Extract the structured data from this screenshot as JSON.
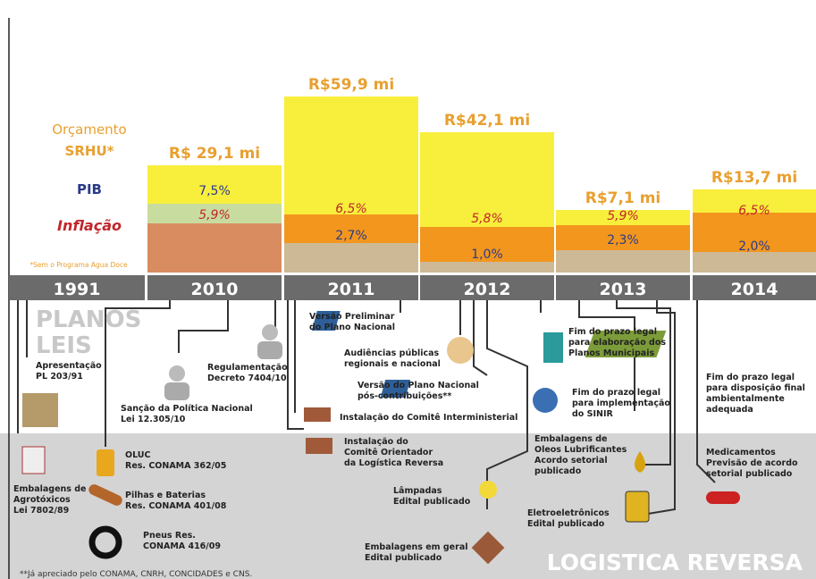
{
  "legend": {
    "budget": [
      "Orçamento",
      "SRHU*"
    ],
    "pib": "PIB",
    "inflation": "Inflação",
    "note": "*Sem o Programa Agua Doce"
  },
  "years": [
    "1991",
    "2010",
    "2011",
    "2012",
    "2013",
    "2014"
  ],
  "columns": [
    {
      "budget": "R$ 29,1 mi",
      "pib": "7,5%",
      "inflation": "5,9%"
    },
    {
      "budget": "R$59,9 mi",
      "pib": "2,7%",
      "inflation": "6,5%"
    },
    {
      "budget": "R$42,1 mi",
      "pib": "1,0%",
      "inflation": "5,8%"
    },
    {
      "budget": "R$7,1 mi",
      "pib": "2,3%",
      "inflation": "5,9%"
    },
    {
      "budget": "R$13,7 mi",
      "pib": "2,0%",
      "inflation": "6,5%"
    }
  ],
  "sections": {
    "plans": "PLANOS",
    "laws": "LEIS",
    "reverse": "LOGISTICA REVERSA"
  },
  "events": [
    {
      "lines": [
        "Apresentação",
        "PL 203/91"
      ]
    },
    {
      "lines": [
        "Embalagens de",
        "Agrotóxicos",
        "Lei 7802/89"
      ]
    },
    {
      "lines": [
        "Sanção da Política Nacional",
        "Lei 12.305/10"
      ]
    },
    {
      "lines": [
        "Regulamentação",
        "Decreto 7404/10"
      ]
    },
    {
      "lines": [
        "OLUC",
        "Res. CONAMA 362/05"
      ]
    },
    {
      "lines": [
        "Pilhas e Baterias",
        "Res. CONAMA 401/08"
      ]
    },
    {
      "lines": [
        "Pneus Res.",
        "CONAMA 416/09"
      ]
    },
    {
      "lines": [
        "Versão Preliminar",
        "do Plano Nacional"
      ]
    },
    {
      "lines": [
        "Audiências públicas",
        "regionais e nacional"
      ]
    },
    {
      "lines": [
        "Versão do Plano Nacional",
        "pós-contribuições**"
      ]
    },
    {
      "lines": [
        "Instalação do Comitê Interministerial"
      ]
    },
    {
      "lines": [
        "Instalação do",
        "Comitê Orientador",
        "da Logística Reversa"
      ]
    },
    {
      "lines": [
        "Lâmpadas",
        "Edital publicado"
      ]
    },
    {
      "lines": [
        "Embalagens em geral",
        "Edital publicado"
      ]
    },
    {
      "lines": [
        "Fim do prazo legal",
        "para elaboração dos",
        "Planos Municipais"
      ]
    },
    {
      "lines": [
        "Fim do prazo legal",
        "para implementação",
        "do SINIR"
      ]
    },
    {
      "lines": [
        "Embalagens de",
        "Oleos Lubrificantes",
        "Acordo setorial",
        "publicado"
      ]
    },
    {
      "lines": [
        "Eletroeletrônicos",
        "Edital publicado"
      ]
    },
    {
      "lines": [
        "Fim do prazo legal",
        "para disposição final",
        "ambientalmente",
        "adequada"
      ]
    },
    {
      "lines": [
        "Medicamentos",
        "Previsão de acordo",
        "setorial publicado"
      ]
    }
  ],
  "footnote": "**Já apreciado pelo CONAMA, CNRH, CONCIDADES e CNS."
}
